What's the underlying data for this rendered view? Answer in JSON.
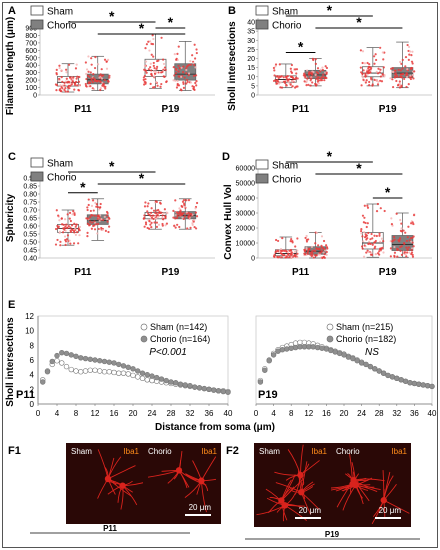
{
  "panels": {
    "A": "A",
    "B": "B",
    "C": "C",
    "D": "D",
    "E": "E",
    "F1": "F1",
    "F2": "F2"
  },
  "legend": {
    "sham": "Sham",
    "chorio": "Chorio"
  },
  "colors": {
    "sham_box": "#ffffff",
    "chorio_box": "#808080",
    "dots": "#e83b3b",
    "dots_pale": "#f6b6b6",
    "sham_circle": "#ffffff",
    "chorio_circle": "#8f8f8f",
    "micro_bg": "#2a0806",
    "micro_cell": "#d9231d"
  },
  "chart_data": [
    {
      "id": "A",
      "type": "box",
      "ylabel": "Filament length (μm)",
      "ylim": [
        0,
        900
      ],
      "yticks": [
        0,
        100,
        200,
        300,
        400,
        500,
        600,
        700,
        800,
        900
      ],
      "groups": [
        "P11",
        "P19"
      ],
      "series": [
        {
          "name": "Sham",
          "boxes": [
            {
              "q1": 120,
              "median": 170,
              "q3": 250,
              "min": 40,
              "max": 420
            },
            {
              "q1": 250,
              "median": 330,
              "q3": 480,
              "min": 90,
              "max": 820
            }
          ]
        },
        {
          "name": "Chorio",
          "boxes": [
            {
              "q1": 150,
              "median": 205,
              "q3": 280,
              "min": 60,
              "max": 520
            },
            {
              "q1": 200,
              "median": 280,
              "q3": 420,
              "min": 60,
              "max": 720
            }
          ]
        }
      ],
      "significance": [
        {
          "from": [
            0,
            0
          ],
          "to": [
            1,
            0
          ],
          "label": "*"
        },
        {
          "from": [
            0,
            1
          ],
          "to": [
            1,
            1
          ],
          "label": "*"
        },
        {
          "from": [
            1,
            0
          ],
          "to": [
            1,
            1
          ],
          "label": "*"
        }
      ]
    },
    {
      "id": "B",
      "type": "box",
      "ylabel": "Sholl intersections",
      "ylim": [
        0,
        40
      ],
      "yticks": [
        0,
        5,
        10,
        15,
        20,
        25,
        30,
        35,
        40
      ],
      "groups": [
        "P11",
        "P19"
      ],
      "series": [
        {
          "name": "Sham",
          "boxes": [
            {
              "q1": 7,
              "median": 8.5,
              "q3": 10.5,
              "min": 4,
              "max": 17
            },
            {
              "q1": 10,
              "median": 12,
              "q3": 15.5,
              "min": 5,
              "max": 26
            }
          ]
        },
        {
          "name": "Chorio",
          "boxes": [
            {
              "q1": 9,
              "median": 11,
              "q3": 13.5,
              "min": 5,
              "max": 20
            },
            {
              "q1": 9.5,
              "median": 12,
              "q3": 15,
              "min": 4,
              "max": 29
            }
          ]
        }
      ],
      "significance": [
        {
          "from": [
            0,
            0
          ],
          "to": [
            0,
            1
          ],
          "label": "*"
        },
        {
          "from": [
            0,
            0
          ],
          "to": [
            1,
            0
          ],
          "label": "*"
        },
        {
          "from": [
            0,
            1
          ],
          "to": [
            1,
            1
          ],
          "label": "*"
        }
      ]
    },
    {
      "id": "C",
      "type": "box",
      "ylabel": "Sphericity",
      "ylim": [
        0.4,
        0.9
      ],
      "yticks": [
        0.4,
        0.45,
        0.5,
        0.55,
        0.6,
        0.65,
        0.7,
        0.75,
        0.8,
        0.85,
        0.9
      ],
      "groups": [
        "P11",
        "P19"
      ],
      "series": [
        {
          "name": "Sham",
          "boxes": [
            {
              "q1": 0.56,
              "median": 0.585,
              "q3": 0.61,
              "min": 0.48,
              "max": 0.7
            },
            {
              "q1": 0.645,
              "median": 0.665,
              "q3": 0.685,
              "min": 0.58,
              "max": 0.76
            }
          ]
        },
        {
          "name": "Chorio",
          "boxes": [
            {
              "q1": 0.61,
              "median": 0.635,
              "q3": 0.67,
              "min": 0.51,
              "max": 0.77
            },
            {
              "q1": 0.645,
              "median": 0.665,
              "q3": 0.69,
              "min": 0.58,
              "max": 0.77
            }
          ]
        }
      ],
      "significance": [
        {
          "from": [
            0,
            0
          ],
          "to": [
            0,
            1
          ],
          "label": "*"
        },
        {
          "from": [
            0,
            0
          ],
          "to": [
            1,
            0
          ],
          "label": "*"
        },
        {
          "from": [
            0,
            1
          ],
          "to": [
            1,
            1
          ],
          "label": "*"
        }
      ]
    },
    {
      "id": "D",
      "type": "box",
      "ylabel": "Convex Hull Vol",
      "ylim": [
        0,
        60000
      ],
      "yticks": [
        0,
        10000,
        20000,
        30000,
        40000,
        50000,
        60000
      ],
      "groups": [
        "P11",
        "P19"
      ],
      "series": [
        {
          "name": "Sham",
          "boxes": [
            {
              "q1": 1500,
              "median": 3000,
              "q3": 5500,
              "min": 0,
              "max": 14000
            },
            {
              "q1": 6000,
              "median": 10000,
              "q3": 17000,
              "min": 500,
              "max": 36000
            }
          ]
        },
        {
          "name": "Chorio",
          "boxes": [
            {
              "q1": 2500,
              "median": 4500,
              "q3": 7500,
              "min": 0,
              "max": 17000
            },
            {
              "q1": 5000,
              "median": 9000,
              "q3": 15000,
              "min": 500,
              "max": 30000
            }
          ]
        }
      ],
      "significance": [
        {
          "from": [
            0,
            0
          ],
          "to": [
            1,
            0
          ],
          "label": "*"
        },
        {
          "from": [
            0,
            1
          ],
          "to": [
            1,
            1
          ],
          "label": "*"
        },
        {
          "from": [
            1,
            0
          ],
          "to": [
            1,
            1
          ],
          "label": "*"
        }
      ]
    },
    {
      "id": "E-P11",
      "type": "scatter",
      "ylabel": "Sholl intersections",
      "xlabel": "Distance from soma (μm)",
      "ylim": [
        0,
        12
      ],
      "yticks": [
        0,
        2,
        4,
        6,
        8,
        10,
        12
      ],
      "xlim": [
        0,
        40
      ],
      "xticks": [
        0,
        4,
        8,
        12,
        16,
        20,
        24,
        28,
        32,
        36,
        40
      ],
      "age": "P11",
      "stat": "P<0.001",
      "series": [
        {
          "name": "Sham (n=142)",
          "x": [
            1,
            2,
            3,
            4,
            5,
            6,
            7,
            8,
            9,
            10,
            11,
            12,
            13,
            14,
            15,
            16,
            17,
            18,
            19,
            20,
            21,
            22,
            23,
            24,
            25,
            26,
            27,
            28,
            29,
            30,
            31,
            32,
            33,
            34,
            35,
            36,
            37,
            38,
            39,
            40
          ],
          "y": [
            3.3,
            4.5,
            5.4,
            5.9,
            5.6,
            5.1,
            4.7,
            4.5,
            4.4,
            4.5,
            4.6,
            4.6,
            4.5,
            4.4,
            4.4,
            4.3,
            4.2,
            4.2,
            4.1,
            3.9,
            3.7,
            3.5,
            3.3,
            3.2,
            3.1,
            3.0,
            2.9,
            2.8,
            2.7,
            2.6,
            2.5,
            2.4,
            2.3,
            2.2,
            2.1,
            2.0,
            1.9,
            1.8,
            1.8,
            1.7
          ]
        },
        {
          "name": "Chorio (n=164)",
          "x": [
            1,
            2,
            3,
            4,
            5,
            6,
            7,
            8,
            9,
            10,
            11,
            12,
            13,
            14,
            15,
            16,
            17,
            18,
            19,
            20,
            21,
            22,
            23,
            24,
            25,
            26,
            27,
            28,
            29,
            30,
            31,
            32,
            33,
            34,
            35,
            36,
            37,
            38,
            39,
            40
          ],
          "y": [
            3.0,
            4.4,
            5.8,
            6.6,
            7.0,
            6.9,
            6.7,
            6.5,
            6.3,
            6.2,
            6.1,
            6.0,
            5.9,
            5.8,
            5.7,
            5.6,
            5.4,
            5.2,
            5.0,
            4.8,
            4.5,
            4.2,
            4.0,
            3.8,
            3.6,
            3.4,
            3.2,
            3.0,
            2.9,
            2.7,
            2.6,
            2.5,
            2.3,
            2.2,
            2.1,
            2.0,
            1.9,
            1.8,
            1.7,
            1.6
          ]
        }
      ]
    },
    {
      "id": "E-P19",
      "type": "scatter",
      "xlabel": "Distance from soma (μm)",
      "ylim": [
        0,
        12
      ],
      "xlim": [
        0,
        40
      ],
      "xticks": [
        0,
        4,
        8,
        12,
        16,
        20,
        24,
        28,
        32,
        36,
        40
      ],
      "age": "P19",
      "stat": "NS",
      "series": [
        {
          "name": "Sham (n=215)",
          "x": [
            1,
            2,
            3,
            4,
            5,
            6,
            7,
            8,
            9,
            10,
            11,
            12,
            13,
            14,
            15,
            16,
            17,
            18,
            19,
            20,
            21,
            22,
            23,
            24,
            25,
            26,
            27,
            28,
            29,
            30,
            31,
            32,
            33,
            34,
            35,
            36,
            37,
            38,
            39,
            40
          ],
          "y": [
            3.2,
            4.8,
            6.0,
            6.9,
            7.4,
            7.7,
            7.9,
            8.1,
            8.3,
            8.4,
            8.4,
            8.3,
            8.2,
            8.0,
            7.8,
            7.6,
            7.4,
            7.2,
            7.0,
            6.8,
            6.5,
            6.3,
            6.0,
            5.7,
            5.4,
            5.1,
            4.8,
            4.5,
            4.2,
            3.9,
            3.7,
            3.5,
            3.3,
            3.1,
            2.9,
            2.8,
            2.7,
            2.6,
            2.5,
            2.4
          ]
        },
        {
          "name": "Chorio (n=182)",
          "x": [
            1,
            2,
            3,
            4,
            5,
            6,
            7,
            8,
            9,
            10,
            11,
            12,
            13,
            14,
            15,
            16,
            17,
            18,
            19,
            20,
            21,
            22,
            23,
            24,
            25,
            26,
            27,
            28,
            29,
            30,
            31,
            32,
            33,
            34,
            35,
            36,
            37,
            38,
            39,
            40
          ],
          "y": [
            3.0,
            4.6,
            5.9,
            6.7,
            7.2,
            7.4,
            7.5,
            7.6,
            7.7,
            7.8,
            7.8,
            7.8,
            7.8,
            7.7,
            7.6,
            7.5,
            7.3,
            7.1,
            6.9,
            6.7,
            6.4,
            6.2,
            5.9,
            5.6,
            5.4,
            5.1,
            4.8,
            4.5,
            4.2,
            3.9,
            3.7,
            3.5,
            3.3,
            3.1,
            2.9,
            2.8,
            2.7,
            2.6,
            2.5,
            2.4
          ]
        }
      ]
    }
  ],
  "micrographs": {
    "stain": "Iba1",
    "scale": "20 μm",
    "F1": {
      "left": "Sham",
      "right": "Chorio",
      "age": "P11"
    },
    "F2": {
      "left": "Sham",
      "right": "Chorio",
      "age": "P19"
    }
  }
}
